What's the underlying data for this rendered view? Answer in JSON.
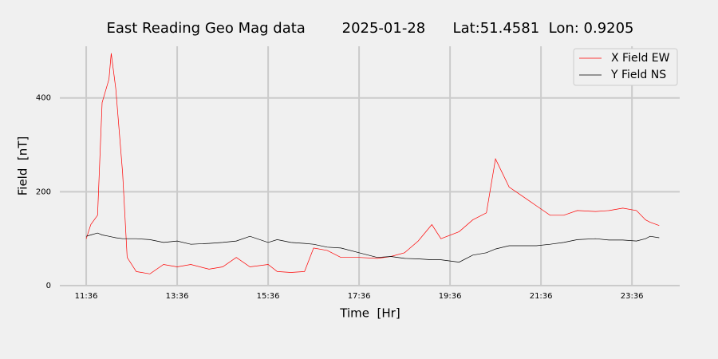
{
  "chart_data": {
    "type": "line",
    "title": "East Reading Geo Mag data        2025-01-28      Lat:51.4581  Lon: 0.9205",
    "x_label": "Time  [Hr]",
    "y_label": "Field  [nT]",
    "x": [
      11.6,
      11.7,
      11.85,
      11.95,
      12.1,
      12.15,
      12.25,
      12.4,
      12.5,
      12.7,
      13.0,
      13.3,
      13.6,
      13.9,
      14.3,
      14.6,
      14.9,
      15.2,
      15.6,
      15.8,
      16.1,
      16.4,
      16.6,
      16.9,
      17.2,
      17.6,
      18.0,
      18.3,
      18.6,
      18.9,
      19.2,
      19.4,
      19.8,
      20.1,
      20.4,
      20.6,
      20.9,
      21.2,
      21.5,
      21.8,
      22.1,
      22.4,
      22.8,
      23.1,
      23.4,
      23.7,
      23.9,
      24.0,
      24.2
    ],
    "series": [
      {
        "name": "X Field EW",
        "color": "#ff0000",
        "values": [
          100,
          130,
          150,
          390,
          440,
          495,
          420,
          240,
          60,
          30,
          25,
          45,
          40,
          45,
          35,
          40,
          60,
          40,
          45,
          30,
          28,
          30,
          80,
          75,
          60,
          60,
          58,
          62,
          70,
          95,
          130,
          100,
          115,
          140,
          155,
          270,
          210,
          190,
          170,
          150,
          150,
          160,
          158,
          160,
          165,
          160,
          140,
          135,
          128
        ]
      },
      {
        "name": "Y Field NS",
        "color": "#000000",
        "values": [
          105,
          108,
          112,
          108,
          105,
          104,
          102,
          100,
          100,
          100,
          98,
          92,
          95,
          88,
          90,
          92,
          95,
          105,
          92,
          98,
          92,
          90,
          88,
          82,
          80,
          70,
          60,
          62,
          58,
          57,
          55,
          55,
          50,
          65,
          70,
          78,
          85,
          85,
          85,
          88,
          92,
          98,
          100,
          97,
          97,
          95,
          100,
          105,
          102
        ]
      }
    ],
    "xlim": [
      11.02,
      24.65
    ],
    "xticks": [
      {
        "value": 11.6,
        "label": "11:36"
      },
      {
        "value": 13.6,
        "label": "13:36"
      },
      {
        "value": 15.6,
        "label": "15:36"
      },
      {
        "value": 17.6,
        "label": "17:36"
      },
      {
        "value": 19.6,
        "label": "19:36"
      },
      {
        "value": 21.6,
        "label": "21:36"
      },
      {
        "value": 23.6,
        "label": "23:36"
      }
    ],
    "ylim": [
      0,
      510
    ],
    "yticks": [
      0,
      200,
      400
    ],
    "grid": true,
    "legend": "upper right"
  }
}
